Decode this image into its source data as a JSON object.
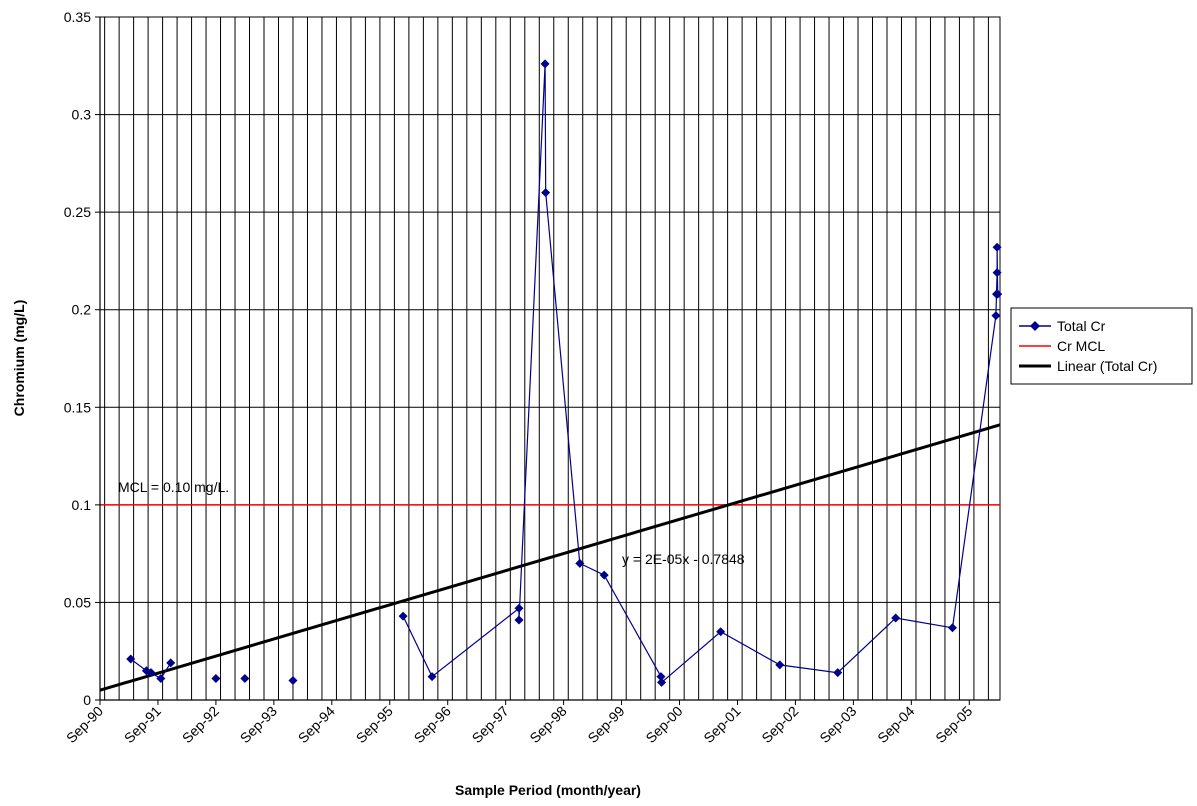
{
  "chart_data": {
    "type": "line",
    "title": "",
    "xlabel": "Sample Period (month/year)",
    "ylabel": "Chromium (mg/L)",
    "ylim": [
      0,
      0.35
    ],
    "yticks": [
      "0",
      "0.05",
      "0.1",
      "0.15",
      "0.2",
      "0.25",
      "0.3",
      "0.35"
    ],
    "xticks": [
      "Sep-90",
      "Sep-91",
      "Sep-92",
      "Sep-93",
      "Sep-94",
      "Sep-95",
      "Sep-96",
      "Sep-97",
      "Sep-98",
      "Sep-99",
      "Sep-00",
      "Sep-01",
      "Sep-02",
      "Sep-03",
      "Sep-04",
      "Sep-05"
    ],
    "x_range_years": [
      1990.67,
      2006.2
    ],
    "grid": true,
    "legend_position": "right",
    "series": [
      {
        "name": "Total Cr",
        "color": "#00008B",
        "marker": "diamond",
        "segments": [
          [
            [
              1991.2,
              0.021
            ],
            [
              1991.47,
              0.015
            ],
            [
              1991.55,
              0.014
            ],
            [
              1991.72,
              0.011
            ],
            [
              1991.89,
              0.019
            ]
          ],
          [
            [
              1992.67,
              0.011
            ]
          ],
          [
            [
              1993.17,
              0.011
            ]
          ],
          [
            [
              1994.0,
              0.01
            ]
          ],
          [
            [
              1995.9,
              0.043
            ],
            [
              1996.4,
              0.012
            ],
            [
              1997.9,
              0.047
            ],
            [
              1997.9,
              0.041
            ],
            [
              1998.35,
              0.326
            ],
            [
              1998.36,
              0.26
            ],
            [
              1998.95,
              0.07
            ],
            [
              1999.37,
              0.064
            ],
            [
              2000.35,
              0.012
            ],
            [
              2000.36,
              0.009
            ],
            [
              2001.38,
              0.035
            ],
            [
              2002.4,
              0.018
            ],
            [
              2003.4,
              0.014
            ],
            [
              2004.4,
              0.042
            ],
            [
              2005.38,
              0.037
            ],
            [
              2006.13,
              0.197
            ],
            [
              2006.14,
              0.208
            ],
            [
              2006.15,
              0.219
            ],
            [
              2006.15,
              0.232
            ],
            [
              2006.16,
              0.208
            ]
          ]
        ]
      },
      {
        "name": "Cr MCL",
        "color": "#FF0000",
        "y": 0.1
      },
      {
        "name": "Linear (Total Cr)",
        "color": "#000000",
        "start": [
          1990.67,
          0.005
        ],
        "end": [
          2006.2,
          0.141
        ]
      }
    ],
    "annotations": [
      "MCL = 0.10 mg/L.",
      "y = 2E-05x - 0.7848"
    ]
  }
}
